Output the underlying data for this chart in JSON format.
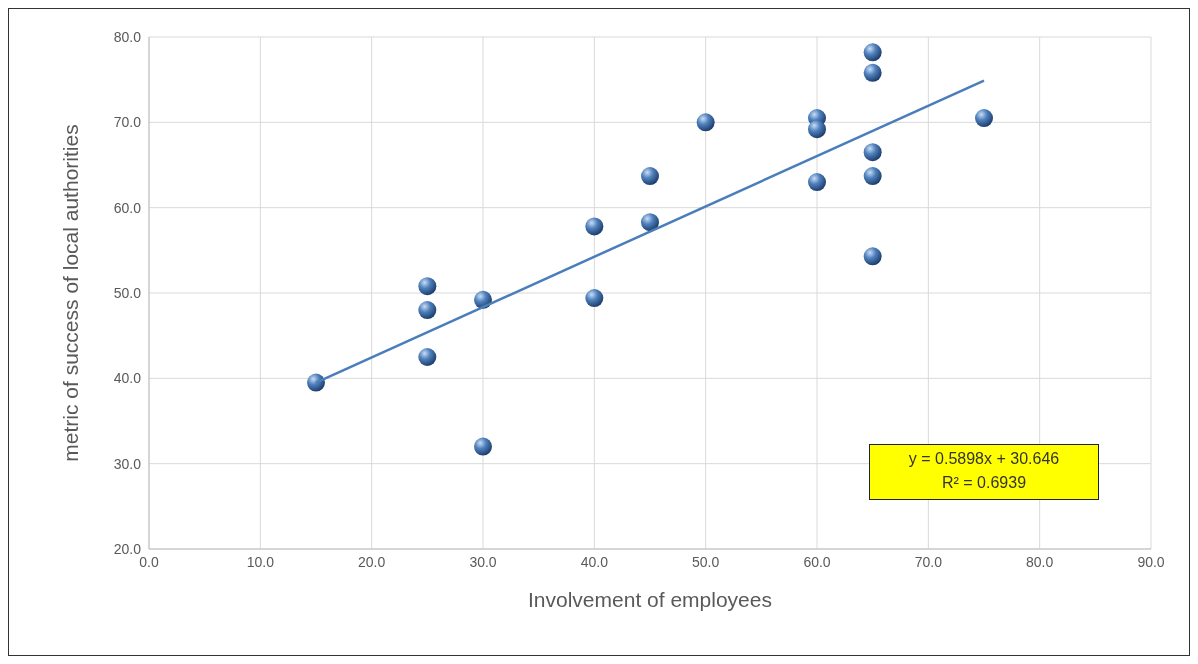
{
  "chart_data": {
    "type": "scatter",
    "xlabel": "Involvement of employees",
    "ylabel": "metric of success of local authorities",
    "xlim": [
      0,
      90
    ],
    "xticks": [
      {
        "value": 0,
        "label": "0.0"
      },
      {
        "value": 10,
        "label": "10.0"
      },
      {
        "value": 20,
        "label": "20.0"
      },
      {
        "value": 30,
        "label": "30.0"
      },
      {
        "value": 40,
        "label": "40.0"
      },
      {
        "value": 50,
        "label": "50.0"
      },
      {
        "value": 60,
        "label": "60.0"
      },
      {
        "value": 70,
        "label": "70.0"
      },
      {
        "value": 80,
        "label": "80.0"
      },
      {
        "value": 90,
        "label": "90.0"
      }
    ],
    "ylim": [
      20,
      80
    ],
    "yticks": [
      {
        "value": 20,
        "label": "20.0"
      },
      {
        "value": 30,
        "label": "30.0"
      },
      {
        "value": 40,
        "label": "40.0"
      },
      {
        "value": 50,
        "label": "50.0"
      },
      {
        "value": 60,
        "label": "60.0"
      },
      {
        "value": 70,
        "label": "70.0"
      },
      {
        "value": 80,
        "label": "80.0"
      }
    ],
    "grid": true,
    "series": [
      {
        "marker": "circle",
        "color": "#4f81bd",
        "x": [
          15,
          25,
          25,
          25,
          30,
          30,
          40,
          40,
          45,
          45,
          50,
          60,
          60,
          60,
          65,
          65,
          65,
          65,
          65,
          75
        ],
        "values": [
          39.5,
          50.8,
          48,
          42.5,
          49.2,
          32,
          57.8,
          49.4,
          63.7,
          58.3,
          70,
          70.5,
          69.2,
          63,
          78.2,
          75.8,
          66.5,
          63.7,
          54.3,
          70.5
        ]
      },
      {
        "type": "line",
        "marker": "none",
        "color": "#4a7ebb",
        "x": [
          15,
          75
        ],
        "values": [
          39.5,
          74.9
        ]
      }
    ],
    "annotations": [
      "y = 0.5898x + 30.646",
      "R² = 0.6939"
    ]
  }
}
